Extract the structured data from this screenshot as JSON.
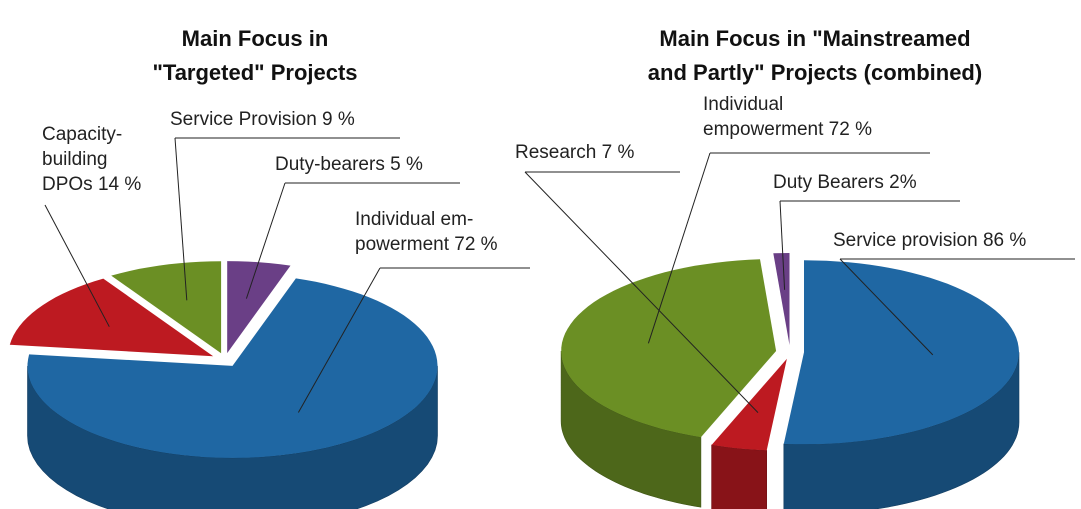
{
  "chart_data": [
    {
      "type": "pie",
      "title": "Main Focus in\n\"Targeted\" Projects",
      "values": [
        5,
        72,
        14,
        9
      ],
      "value_labels": [
        "Duty-bearers 5 %",
        "Individual em-\npowerment 72 %",
        "Capacity-\nbuilding\nDPOs 14 %",
        "Service Provision 9 %"
      ],
      "colors": [
        "#6a3f86",
        "#1f67a3",
        "#bd1a21",
        "#6b8f24"
      ]
    },
    {
      "type": "pie",
      "title": "Main Focus in \"Mainstreamed\nand Partly\" Projects (combined)",
      "values": [
        86,
        7,
        72,
        2
      ],
      "value_labels": [
        "Service provision 86 %",
        "Research 7 %",
        "Individual\nempowerment 72 %",
        "Duty Bearers 2%"
      ],
      "colors": [
        "#1f67a3",
        "#bd1a21",
        "#6b8f24",
        "#6a3f86"
      ]
    }
  ]
}
